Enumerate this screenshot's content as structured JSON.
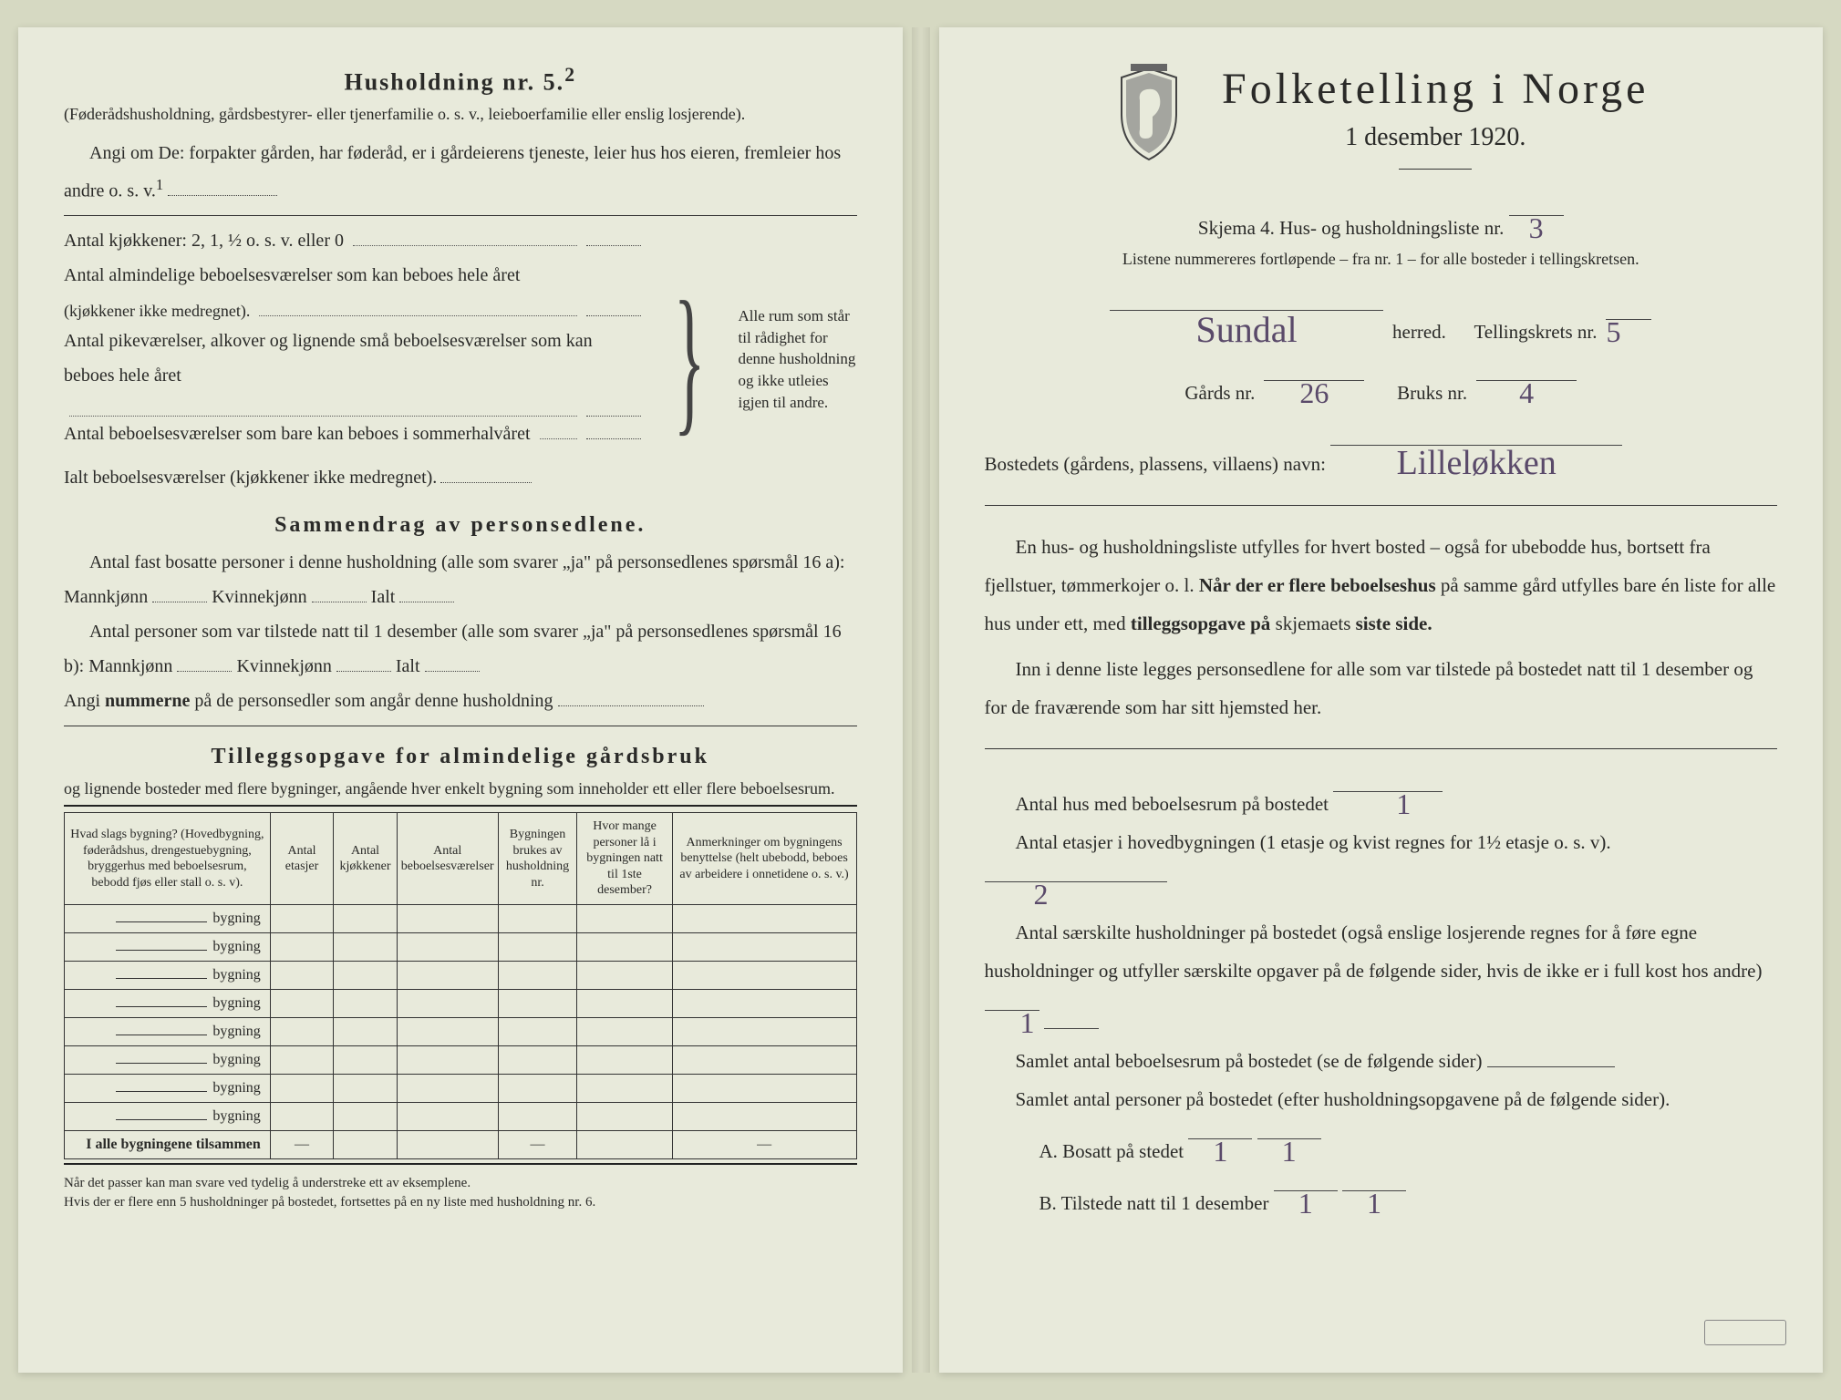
{
  "colors": {
    "paper": "#e8eadb",
    "ink": "#2a2a28",
    "handwriting": "#5a4a6a",
    "background": "#d6d9c2"
  },
  "left": {
    "heading": "Husholdning nr. 5.",
    "heading_sup": "2",
    "sub1": "(Føderådshusholdning, gårdsbestyrer- eller tjenerfamilie o. s. v., leieboerfamilie eller enslig losjerende).",
    "angi": "Angi om De: forpakter gården, har føderåd, er i gårdeierens tjeneste, leier hus hos eieren, fremleier hos andre o. s. v.",
    "angi_sup": "1",
    "kjokken": "Antal kjøkkener: 2, 1, ½ o. s. v. eller 0",
    "alm": "Antal almindelige beboelsesværelser som kan beboes hele året",
    "alm_note": "(kjøkkener ikke medregnet).",
    "pike": "Antal pikeværelser, alkover og lignende små beboelsesværelser som kan beboes hele året",
    "sommer": "Antal beboelsesværelser som bare kan beboes i sommerhalvåret",
    "ialt": "Ialt beboelsesværelser (kjøkkener ikke medregnet).",
    "brace_text": "Alle rum som står til rådighet for denne husholdning og ikke utleies igjen til andre.",
    "sammendrag_h": "Sammendrag av personsedlene.",
    "samm1": "Antal fast bosatte personer i denne husholdning (alle som svarer „ja\" på personsedlenes spørsmål 16 a): Mannkjønn",
    "kvinne": "Kvinnekjønn",
    "ialt_label": "Ialt",
    "samm2": "Antal personer som var tilstede natt til 1 desember (alle som svarer „ja\" på personsedlenes spørsmål 16 b): Mannkjønn",
    "angi_num": "Angi",
    "angi_num_bold": "nummerne",
    "angi_num_rest": "på de personsedler som angår denne husholdning",
    "tillegg_h": "Tilleggsopgave for almindelige gårdsbruk",
    "tillegg_sub": "og lignende bosteder med flere bygninger, angående hver enkelt bygning som inneholder ett eller flere beboelsesrum.",
    "table": {
      "headers": [
        "Hvad slags bygning?\n(Hovedbygning, føderådshus, drengestuebygning, bryggerhus med beboelsesrum, bebodd fjøs eller stall o. s. v).",
        "Antal etasjer",
        "Antal kjøkkener",
        "Antal beboelsesværelser",
        "Bygningen brukes av husholdning nr.",
        "Hvor mange personer lå i bygningen natt til 1ste desember?",
        "Anmerkninger om bygningens benyttelse (helt ubebodd, beboes av arbeidere i onnetidene o. s. v.)"
      ],
      "row_label": "bygning",
      "row_count": 8,
      "total_label": "I alle bygningene tilsammen"
    },
    "footnote1": "Når det passer kan man svare ved tydelig å understreke ett av eksemplene.",
    "footnote2": "Hvis der er flere enn 5 husholdninger på bostedet, fortsettes på en ny liste med husholdning nr. 6."
  },
  "right": {
    "title": "Folketelling i Norge",
    "date": "1 desember 1920.",
    "skjema": "Skjema 4.  Hus- og husholdningsliste nr.",
    "skjema_val": "3",
    "listene": "Listene nummereres fortløpende – fra nr. 1 – for alle bosteder i tellingskretsen.",
    "herred_val": "Sundal",
    "herred_label": "herred.",
    "tellingskrets": "Tellingskrets nr.",
    "tellingskrets_val": "5",
    "gards": "Gårds nr.",
    "gards_val": "26",
    "bruks": "Bruks nr.",
    "bruks_val": "4",
    "bosted": "Bostedets (gårdens, plassens, villaens) navn:",
    "bosted_val": "Lilleløkken",
    "para1": "En hus- og husholdningsliste utfylles for hvert bosted – også for ubebodde hus, bortsett fra fjellstuer, tømmerkojer o. l.",
    "para1_bold": "Når der er flere beboelseshus",
    "para1_rest": "på samme gård utfylles bare én liste for alle hus under ett, med",
    "para1_bold2": "tilleggsopgave på",
    "para1_rest2": "skjemaets",
    "para1_bold3": "siste side.",
    "para2": "Inn i denne liste legges personsedlene for alle som var tilstede på bostedet natt til 1 desember og for de fraværende som har sitt hjemsted her.",
    "antal_hus": "Antal hus med beboelsesrum på bostedet",
    "antal_hus_val": "1",
    "etasjer": "Antal etasjer i hovedbygningen (1 etasje og kvist regnes for 1½ etasje o. s. v).",
    "etasjer_val": "2",
    "saerskilte": "Antal særskilte husholdninger på bostedet (også enslige losjerende regnes for å føre egne husholdninger og utfyller særskilte opgaver på de følgende sider, hvis de ikke er i full kost hos andre)",
    "saerskilte_val": "1",
    "samlet_rum": "Samlet antal beboelsesrum på bostedet (se de følgende sider)",
    "samlet_pers": "Samlet antal personer på bostedet (efter husholdningsopgavene på de følgende sider).",
    "bosatt_a": "A.  Bosatt på stedet",
    "bosatt_a_val1": "1",
    "bosatt_a_val2": "1",
    "tilstede_b": "B.  Tilstede natt til 1 desember",
    "tilstede_b_val1": "1",
    "tilstede_b_val2": "1"
  }
}
